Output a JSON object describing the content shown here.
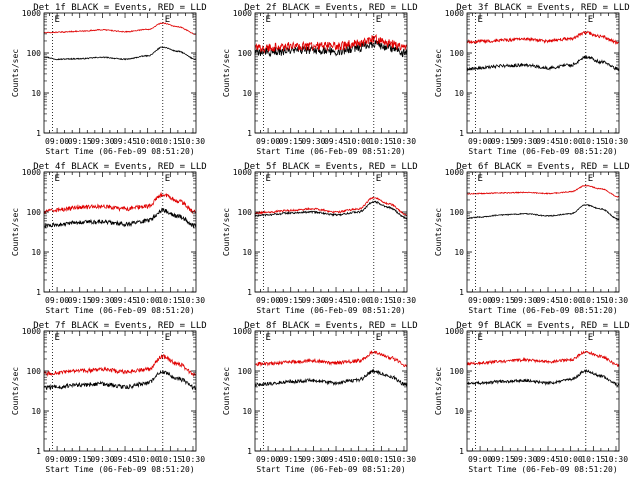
{
  "figure": {
    "xlabel": "Start Time (06-Feb-09 08:51:20)",
    "ylabel": "Counts/sec",
    "y_ticks": [
      "1",
      "10",
      "100",
      "1000"
    ],
    "x_ticks": [
      "09:00",
      "09:15",
      "09:30",
      "09:45",
      "10:00",
      "10:15",
      "10:30"
    ],
    "marker_label": "E",
    "colors": {
      "events": "#000000",
      "lld": "#e00000",
      "axes": "#000000"
    }
  },
  "chart_data": [
    {
      "type": "line",
      "title": "Det 1f BLACK = Events, RED = LLD",
      "detector": "1f",
      "x": [
        "08:51:20",
        "09:00",
        "09:15",
        "09:30",
        "09:45",
        "10:00",
        "10:10",
        "10:20",
        "10:32"
      ],
      "series": [
        {
          "name": "Events",
          "values": [
            80,
            70,
            72,
            78,
            70,
            85,
            140,
            110,
            70
          ]
        },
        {
          "name": "LLD",
          "values": [
            320,
            330,
            350,
            380,
            340,
            390,
            560,
            450,
            300
          ]
        }
      ],
      "ylim": [
        1,
        1000
      ],
      "log_y": true,
      "noise": 0.03,
      "markers": [
        "08:57",
        "10:10"
      ],
      "grid": false
    },
    {
      "type": "line",
      "title": "Det 2f BLACK = Events, RED = LLD",
      "detector": "2f",
      "x": [
        "08:51:20",
        "09:00",
        "09:15",
        "09:30",
        "09:45",
        "10:00",
        "10:10",
        "10:20",
        "10:32"
      ],
      "series": [
        {
          "name": "Events",
          "values": [
            100,
            110,
            115,
            120,
            115,
            140,
            175,
            140,
            100
          ]
        },
        {
          "name": "LLD",
          "values": [
            130,
            140,
            150,
            155,
            150,
            180,
            230,
            180,
            130
          ]
        }
      ],
      "ylim": [
        1,
        1000
      ],
      "log_y": true,
      "noise": 0.25,
      "markers": [
        "08:57",
        "10:10"
      ],
      "grid": false
    },
    {
      "type": "line",
      "title": "Det 3f BLACK = Events, RED = LLD",
      "detector": "3f",
      "x": [
        "08:51:20",
        "09:00",
        "09:15",
        "09:30",
        "09:45",
        "10:00",
        "10:10",
        "10:20",
        "10:32"
      ],
      "series": [
        {
          "name": "Events",
          "values": [
            40,
            42,
            48,
            50,
            42,
            50,
            80,
            60,
            40
          ]
        },
        {
          "name": "LLD",
          "values": [
            190,
            195,
            210,
            220,
            200,
            230,
            320,
            260,
            180
          ]
        }
      ],
      "ylim": [
        1,
        1000
      ],
      "log_y": true,
      "noise": 0.09,
      "markers": [
        "08:57",
        "10:10"
      ],
      "grid": false
    },
    {
      "type": "line",
      "title": "Det 4f BLACK = Events, RED = LLD",
      "detector": "4f",
      "x": [
        "08:51:20",
        "09:00",
        "09:15",
        "09:30",
        "09:45",
        "10:00",
        "10:10",
        "10:20",
        "10:32"
      ],
      "series": [
        {
          "name": "Events",
          "values": [
            45,
            48,
            55,
            58,
            50,
            60,
            110,
            80,
            45
          ]
        },
        {
          "name": "LLD",
          "values": [
            100,
            115,
            130,
            140,
            120,
            140,
            270,
            190,
            100
          ]
        }
      ],
      "ylim": [
        1,
        1000
      ],
      "log_y": true,
      "noise": 0.12,
      "markers": [
        "08:57",
        "10:10"
      ],
      "grid": false
    },
    {
      "type": "line",
      "title": "Det 5f BLACK = Events, RED = LLD",
      "detector": "5f",
      "x": [
        "08:51:20",
        "09:00",
        "09:15",
        "09:30",
        "09:45",
        "10:00",
        "10:10",
        "10:20",
        "10:32"
      ],
      "series": [
        {
          "name": "Events",
          "values": [
            80,
            85,
            95,
            100,
            85,
            100,
            180,
            130,
            70
          ]
        },
        {
          "name": "LLD",
          "values": [
            95,
            100,
            110,
            120,
            100,
            120,
            230,
            160,
            85
          ]
        }
      ],
      "ylim": [
        1,
        1000
      ],
      "log_y": true,
      "noise": 0.05,
      "markers": [
        "08:57",
        "10:10"
      ],
      "grid": false
    },
    {
      "type": "line",
      "title": "Det 6f BLACK = Events, RED = LLD",
      "detector": "6f",
      "x": [
        "08:51:20",
        "09:00",
        "09:15",
        "09:30",
        "09:45",
        "10:00",
        "10:10",
        "10:20",
        "10:32"
      ],
      "series": [
        {
          "name": "Events",
          "values": [
            70,
            75,
            85,
            90,
            80,
            90,
            150,
            120,
            65
          ]
        },
        {
          "name": "LLD",
          "values": [
            280,
            290,
            300,
            310,
            290,
            320,
            460,
            380,
            240
          ]
        }
      ],
      "ylim": [
        1,
        1000
      ],
      "log_y": true,
      "noise": 0.03,
      "markers": [
        "08:57",
        "10:10"
      ],
      "grid": false
    },
    {
      "type": "line",
      "title": "Det 7f BLACK = Events, RED = LLD",
      "detector": "7f",
      "x": [
        "08:51:20",
        "09:00",
        "09:15",
        "09:30",
        "09:45",
        "10:00",
        "10:10",
        "10:20",
        "10:32"
      ],
      "series": [
        {
          "name": "Events",
          "values": [
            38,
            40,
            45,
            48,
            40,
            50,
            95,
            65,
            38
          ]
        },
        {
          "name": "LLD",
          "values": [
            85,
            90,
            100,
            110,
            95,
            110,
            230,
            150,
            80
          ]
        }
      ],
      "ylim": [
        1,
        1000
      ],
      "log_y": true,
      "noise": 0.12,
      "markers": [
        "08:57",
        "10:10"
      ],
      "grid": false
    },
    {
      "type": "line",
      "title": "Det 8f BLACK = Events, RED = LLD",
      "detector": "8f",
      "x": [
        "08:51:20",
        "09:00",
        "09:15",
        "09:30",
        "09:45",
        "10:00",
        "10:10",
        "10:20",
        "10:32"
      ],
      "series": [
        {
          "name": "Events",
          "values": [
            45,
            48,
            55,
            58,
            50,
            60,
            100,
            75,
            45
          ]
        },
        {
          "name": "LLD",
          "values": [
            150,
            155,
            170,
            180,
            160,
            180,
            290,
            220,
            140
          ]
        }
      ],
      "ylim": [
        1,
        1000
      ],
      "log_y": true,
      "noise": 0.1,
      "markers": [
        "08:57",
        "10:10"
      ],
      "grid": false
    },
    {
      "type": "line",
      "title": "Det 9f BLACK = Events, RED = LLD",
      "detector": "9f",
      "x": [
        "08:51:20",
        "09:00",
        "09:15",
        "09:30",
        "09:45",
        "10:00",
        "10:10",
        "10:20",
        "10:32"
      ],
      "series": [
        {
          "name": "Events",
          "values": [
            48,
            50,
            55,
            58,
            50,
            60,
            100,
            75,
            45
          ]
        },
        {
          "name": "LLD",
          "values": [
            150,
            160,
            175,
            190,
            170,
            190,
            300,
            230,
            140
          ]
        }
      ],
      "ylim": [
        1,
        1000
      ],
      "log_y": true,
      "noise": 0.08,
      "markers": [
        "08:57",
        "10:10"
      ],
      "grid": false
    }
  ]
}
